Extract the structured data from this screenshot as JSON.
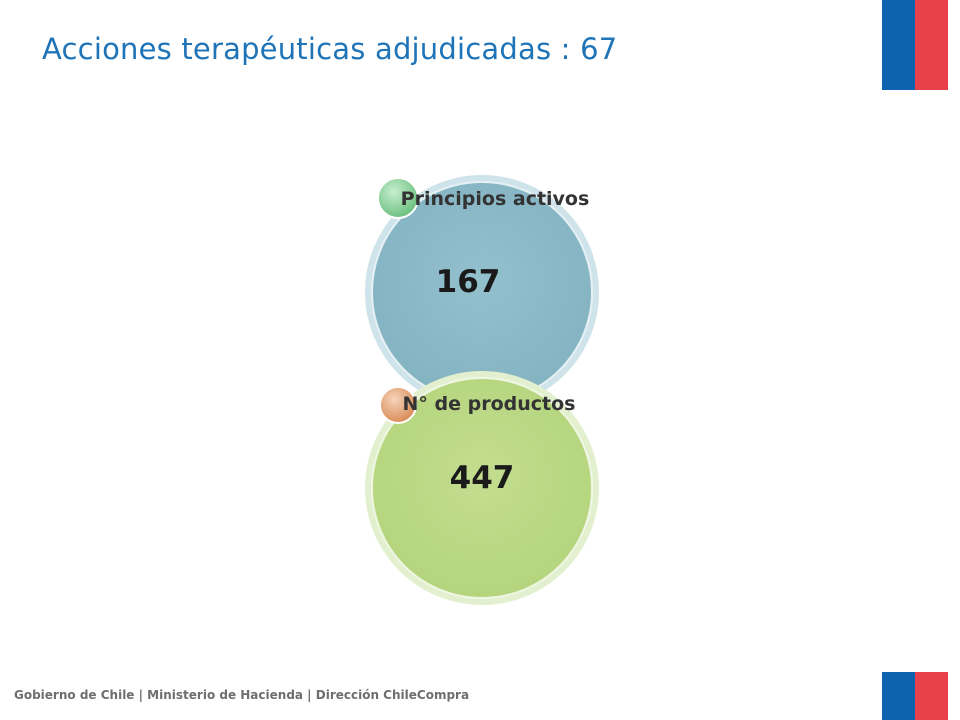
{
  "header": {
    "title": "Acciones terapéuticas adjudicadas : 67"
  },
  "diagram": {
    "nodes": [
      {
        "label": "Principios activos",
        "value": "167",
        "fill": "#8fbcc9",
        "accent": "#7cc98a"
      },
      {
        "label": "N° de productos",
        "value": "447",
        "fill": "#bcd98a",
        "accent": "#e0a47a"
      }
    ]
  },
  "footer": {
    "text": "Gobierno de Chile | Ministerio de Hacienda | Dirección ChileCompra"
  },
  "colors": {
    "title": "#1f74b8",
    "flag_blue": "#0f62ad",
    "flag_red": "#e8414a"
  }
}
